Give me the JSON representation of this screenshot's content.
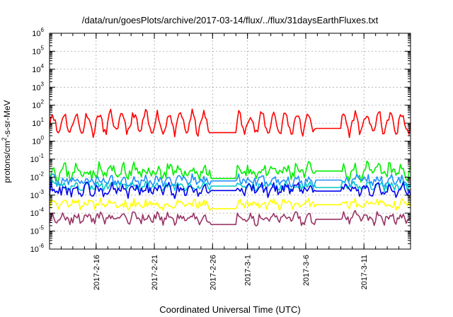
{
  "chart_data": {
    "type": "line",
    "title": "/data/run/goesPlots/archive/2017-03-14/flux/../flux/31daysEarthFluxes.txt",
    "xlabel": "Coordinated Universal Time (UTC)",
    "ylabel_parts": [
      "protons/cm",
      "2",
      "-s-sr-MeV"
    ],
    "yscale": "log",
    "ylim_exp": [
      -6,
      6
    ],
    "y_ticks": [
      {
        "base": "10",
        "exp": "-6"
      },
      {
        "base": "10",
        "exp": "-5"
      },
      {
        "base": "10",
        "exp": "-4"
      },
      {
        "base": "10",
        "exp": "-3"
      },
      {
        "base": "10",
        "exp": "-2"
      },
      {
        "base": "10",
        "exp": "-1"
      },
      {
        "base": "10",
        "exp": "0"
      },
      {
        "base": "10",
        "exp": "1"
      },
      {
        "base": "10",
        "exp": "2"
      },
      {
        "base": "10",
        "exp": "3"
      },
      {
        "base": "10",
        "exp": "4"
      },
      {
        "base": "10",
        "exp": "5"
      },
      {
        "base": "10",
        "exp": "6"
      }
    ],
    "xlim_days": [
      "2017-02-12",
      "2017-03-15"
    ],
    "x_ticks": [
      "2017-2-16",
      "2017-2-21",
      "2017-2-26",
      "2017-3-1",
      "2017-3-6",
      "2017-3-11"
    ],
    "grid": true,
    "gaps": [
      [
        "2017-02-26",
        "2017-02-28"
      ],
      [
        "2017-03-07",
        "2017-03-09"
      ]
    ],
    "series": [
      {
        "color": "#ff0000",
        "base_log": 1.0,
        "amp": 0.55,
        "noise": 0.25,
        "seed": 11
      },
      {
        "color": "#00ee00",
        "base_log": -1.7,
        "amp": 0.25,
        "noise": 0.35,
        "seed": 23
      },
      {
        "color": "#1e90ff",
        "base_log": -2.2,
        "amp": 0.15,
        "noise": 0.25,
        "seed": 37
      },
      {
        "color": "#00c8c8",
        "base_log": -2.5,
        "amp": 0.1,
        "noise": 0.2,
        "seed": 41
      },
      {
        "color": "#0000ee",
        "base_log": -2.7,
        "amp": 0.2,
        "noise": 0.3,
        "seed": 53
      },
      {
        "color": "#ffff00",
        "base_log": -3.5,
        "amp": 0.1,
        "noise": 0.25,
        "seed": 67
      },
      {
        "color": "#993366",
        "base_log": -4.3,
        "amp": 0.2,
        "noise": 0.25,
        "seed": 79
      }
    ]
  }
}
